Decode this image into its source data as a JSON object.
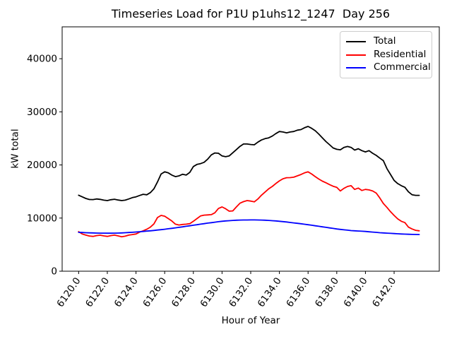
{
  "title": "Timeseries Load for P1U p1uhs12_1247  Day 256",
  "chart_data": {
    "type": "line",
    "title": "Timeseries Load for P1U p1uhs12_1247  Day 256",
    "xlabel": "Hour of Year",
    "ylabel": "kW total",
    "xlim": [
      6118.85,
      6145.15
    ],
    "ylim": [
      0,
      46000
    ],
    "grid": false,
    "x_ticks": [
      6120,
      6122,
      6124,
      6126,
      6128,
      6130,
      6132,
      6134,
      6136,
      6138,
      6140,
      6142
    ],
    "x_tick_labels": [
      "6120.0",
      "6122.0",
      "6124.0",
      "6126.0",
      "6128.0",
      "6130.0",
      "6132.0",
      "6134.0",
      "6136.0",
      "6138.0",
      "6140.0",
      "6142.0"
    ],
    "y_ticks": [
      0,
      10000,
      20000,
      30000,
      40000
    ],
    "y_tick_labels": [
      "0",
      "10000",
      "20000",
      "30000",
      "40000"
    ],
    "x_start": 6120.0,
    "x_step": 0.25,
    "legend": {
      "position": "upper right",
      "entries": [
        {
          "label": "Total",
          "color": "#000000"
        },
        {
          "label": "Residential",
          "color": "#ff0000"
        },
        {
          "label": "Commercial",
          "color": "#0000ff"
        }
      ]
    },
    "series": [
      {
        "name": "Total",
        "color": "#000000",
        "values": [
          14300,
          14000,
          13700,
          13500,
          13480,
          13600,
          13520,
          13380,
          13300,
          13450,
          13550,
          13400,
          13300,
          13380,
          13600,
          13850,
          14000,
          14250,
          14480,
          14380,
          14800,
          15500,
          16800,
          18300,
          18700,
          18500,
          18100,
          17800,
          17950,
          18250,
          18100,
          18600,
          19700,
          20100,
          20250,
          20500,
          21100,
          21900,
          22250,
          22200,
          21700,
          21550,
          21700,
          22300,
          22900,
          23500,
          23950,
          23950,
          23850,
          23800,
          24300,
          24700,
          24950,
          25100,
          25430,
          25900,
          26300,
          26200,
          26050,
          26200,
          26300,
          26550,
          26650,
          27000,
          27250,
          26900,
          26450,
          25800,
          25100,
          24400,
          23800,
          23200,
          22950,
          22850,
          23300,
          23480,
          23300,
          22800,
          23050,
          22700,
          22450,
          22700,
          22200,
          21800,
          21300,
          20800,
          19300,
          18200,
          17100,
          16500,
          16100,
          15800,
          14950,
          14400,
          14280,
          14280
        ]
      },
      {
        "name": "Residential",
        "color": "#ff0000",
        "values": [
          7450,
          7000,
          6800,
          6620,
          6560,
          6700,
          6780,
          6650,
          6560,
          6700,
          6800,
          6650,
          6480,
          6600,
          6800,
          6900,
          7000,
          7350,
          7600,
          7900,
          8300,
          8900,
          10100,
          10500,
          10350,
          9900,
          9450,
          8850,
          8700,
          8800,
          8850,
          8950,
          9400,
          9900,
          10400,
          10550,
          10600,
          10650,
          11000,
          11800,
          12100,
          11750,
          11300,
          11350,
          12100,
          12800,
          13100,
          13300,
          13200,
          13050,
          13600,
          14300,
          14900,
          15500,
          15950,
          16500,
          17000,
          17400,
          17600,
          17620,
          17700,
          17950,
          18200,
          18500,
          18700,
          18300,
          17800,
          17350,
          16950,
          16650,
          16300,
          16000,
          15800,
          15100,
          15600,
          15950,
          16100,
          15400,
          15650,
          15200,
          15400,
          15300,
          15100,
          14700,
          13800,
          12750,
          12000,
          11200,
          10500,
          9850,
          9400,
          9150,
          8300,
          7950,
          7700,
          7600
        ]
      },
      {
        "name": "Commercial",
        "color": "#0000ff",
        "values": [
          7310,
          7280,
          7250,
          7220,
          7200,
          7185,
          7170,
          7160,
          7150,
          7155,
          7165,
          7180,
          7200,
          7240,
          7280,
          7330,
          7380,
          7430,
          7490,
          7545,
          7600,
          7670,
          7745,
          7820,
          7900,
          7985,
          8070,
          8160,
          8250,
          8350,
          8450,
          8550,
          8650,
          8750,
          8850,
          8950,
          9050,
          9140,
          9230,
          9320,
          9400,
          9460,
          9510,
          9560,
          9600,
          9620,
          9635,
          9645,
          9650,
          9650,
          9640,
          9620,
          9600,
          9560,
          9510,
          9460,
          9400,
          9330,
          9260,
          9180,
          9100,
          9015,
          8930,
          8840,
          8750,
          8650,
          8550,
          8450,
          8350,
          8250,
          8150,
          8050,
          7950,
          7870,
          7790,
          7720,
          7650,
          7600,
          7560,
          7520,
          7480,
          7420,
          7365,
          7310,
          7250,
          7210,
          7170,
          7125,
          7080,
          7045,
          7010,
          6980,
          6950,
          6930,
          6915,
          6900
        ]
      }
    ]
  }
}
